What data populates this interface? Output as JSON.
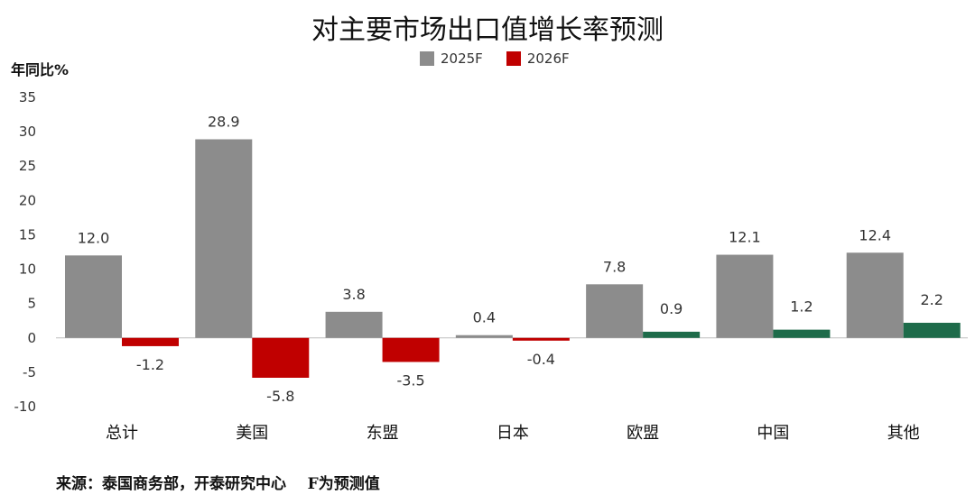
{
  "chart_data": {
    "type": "bar",
    "title": "对主要市场出口值增长率预测",
    "ylabel": "年同比%",
    "categories": [
      "总计",
      "美国",
      "东盟",
      "日本",
      "欧盟",
      "中国",
      "其他"
    ],
    "series": [
      {
        "name": "2025F",
        "values": [
          12.0,
          28.9,
          3.8,
          0.4,
          7.8,
          12.1,
          12.4
        ],
        "color": "#8c8c8c"
      },
      {
        "name": "2026F",
        "values": [
          -1.2,
          -5.8,
          -3.5,
          -0.4,
          0.9,
          1.2,
          2.2
        ],
        "color": "#c00000"
      }
    ],
    "value_labels": {
      "2025F": [
        "12.0",
        "28.9",
        "3.8",
        "0.4",
        "7.8",
        "12.1",
        "12.4"
      ],
      "2026F": [
        "-1.2",
        "-5.8",
        "-3.5",
        "-0.4",
        "0.9",
        "1.2",
        "2.2"
      ]
    },
    "positive_2026_color": "#1e6b4a",
    "ylim": [
      -10,
      35
    ],
    "yticks": [
      35,
      30,
      25,
      20,
      15,
      10,
      5,
      0,
      -5,
      -10
    ],
    "grid": false,
    "legend_position": "top-center"
  },
  "source_note": "来源：泰国商务部，开泰研究中心    F为预测值"
}
